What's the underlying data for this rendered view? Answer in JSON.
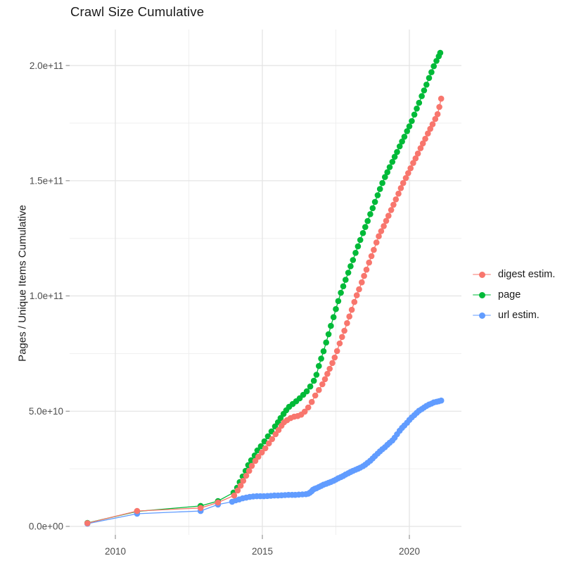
{
  "title": "Crawl Size Cumulative",
  "y_axis": {
    "label": "Pages / Unique Items Cumulative",
    "tick_labels": [
      "0.0e+00",
      "5.0e+10",
      "1.0e+11",
      "1.5e+11",
      "2.0e+11"
    ],
    "tick_values_e9": [
      0,
      50,
      100,
      150,
      200
    ],
    "minor_values_e9": [
      25,
      75,
      125,
      175
    ]
  },
  "x_axis": {
    "tick_labels": [
      "2010",
      "2015",
      "2020"
    ],
    "tick_values": [
      2010,
      2015,
      2020
    ],
    "minor_values": [
      2012.5,
      2017.5
    ]
  },
  "legend": {
    "items": [
      {
        "label": "digest estim.",
        "color": "#F8766D"
      },
      {
        "label": "page",
        "color": "#00BA38"
      },
      {
        "label": "url estim.",
        "color": "#619CFF"
      }
    ]
  },
  "colors": {
    "grid_major": "#e3e3e3",
    "grid_minor": "#efefef",
    "tick_mark": "#8c8c8c",
    "tick_label": "#4d4d4d"
  },
  "chart_data": {
    "type": "scatter",
    "title": "Crawl Size Cumulative",
    "xlabel": "",
    "ylabel": "Pages / Unique Items Cumulative",
    "x_unit": "year",
    "y_unit": "count (values in billions, 1e9)",
    "xlim": [
      2008.445,
      2021.77
    ],
    "ylim_e9": [
      -3.66,
      215.6
    ],
    "grid": true,
    "legend_position": "right",
    "series": [
      {
        "id": "page",
        "name": "page",
        "color": "#00BA38",
        "points": [
          [
            2009.05,
            1.5
          ],
          [
            2010.74,
            6.5
          ],
          [
            2012.9,
            8.9
          ],
          [
            2013.49,
            11
          ],
          [
            2014.02,
            14.7
          ],
          [
            2014.14,
            16.8
          ],
          [
            2014.23,
            19.2
          ],
          [
            2014.33,
            21.7
          ],
          [
            2014.43,
            24.1
          ],
          [
            2014.52,
            26.6
          ],
          [
            2014.62,
            28.7
          ],
          [
            2014.74,
            30.8
          ],
          [
            2014.83,
            33
          ],
          [
            2014.95,
            34.8
          ],
          [
            2015.07,
            36.9
          ],
          [
            2015.19,
            39.1
          ],
          [
            2015.31,
            41.2
          ],
          [
            2015.43,
            43.4
          ],
          [
            2015.53,
            45.2
          ],
          [
            2015.62,
            47
          ],
          [
            2015.72,
            48.8
          ],
          [
            2015.81,
            50.4
          ],
          [
            2015.91,
            51.9
          ],
          [
            2016.03,
            53.1
          ],
          [
            2016.15,
            54.3
          ],
          [
            2016.27,
            55.6
          ],
          [
            2016.39,
            57.1
          ],
          [
            2016.51,
            58.6
          ],
          [
            2016.63,
            60.7
          ],
          [
            2016.75,
            63.2
          ],
          [
            2016.84,
            65.8
          ],
          [
            2016.92,
            69.6
          ],
          [
            2017,
            72.8
          ],
          [
            2017.08,
            76
          ],
          [
            2017.17,
            79.8
          ],
          [
            2017.25,
            83.4
          ],
          [
            2017.33,
            87
          ],
          [
            2017.42,
            90.8
          ],
          [
            2017.5,
            94.3
          ],
          [
            2017.58,
            97.8
          ],
          [
            2017.67,
            101.4
          ],
          [
            2017.75,
            104.2
          ],
          [
            2017.83,
            107
          ],
          [
            2017.92,
            110.1
          ],
          [
            2018,
            112.9
          ],
          [
            2018.08,
            115.6
          ],
          [
            2018.17,
            118.7
          ],
          [
            2018.25,
            121.5
          ],
          [
            2018.33,
            124.3
          ],
          [
            2018.42,
            127.3
          ],
          [
            2018.5,
            129.9
          ],
          [
            2018.58,
            132.5
          ],
          [
            2018.67,
            135.5
          ],
          [
            2018.75,
            138.1
          ],
          [
            2018.83,
            140.8
          ],
          [
            2018.92,
            143.7
          ],
          [
            2019,
            146.4
          ],
          [
            2019.08,
            149
          ],
          [
            2019.17,
            151.6
          ],
          [
            2019.25,
            153.7
          ],
          [
            2019.33,
            155.9
          ],
          [
            2019.42,
            158.2
          ],
          [
            2019.5,
            160.4
          ],
          [
            2019.58,
            162.5
          ],
          [
            2019.67,
            164.9
          ],
          [
            2019.75,
            167
          ],
          [
            2019.83,
            169.1
          ],
          [
            2019.92,
            171.5
          ],
          [
            2020,
            173.6
          ],
          [
            2020.08,
            175.9
          ],
          [
            2020.17,
            178.7
          ],
          [
            2020.25,
            181.3
          ],
          [
            2020.33,
            183.8
          ],
          [
            2020.42,
            186.7
          ],
          [
            2020.5,
            189.2
          ],
          [
            2020.58,
            191.7
          ],
          [
            2020.67,
            194.6
          ],
          [
            2020.75,
            197.1
          ],
          [
            2020.83,
            199.7
          ],
          [
            2020.92,
            202
          ],
          [
            2021,
            204
          ],
          [
            2021.05,
            205.5
          ]
        ]
      },
      {
        "id": "url-estim",
        "name": "url estim.",
        "color": "#619CFF",
        "points": [
          [
            2009.05,
            1.2
          ],
          [
            2010.74,
            5.5
          ],
          [
            2012.9,
            6.7
          ],
          [
            2013.49,
            9.5
          ],
          [
            2013.97,
            10.7
          ],
          [
            2014.09,
            11.3
          ],
          [
            2014.21,
            11.7
          ],
          [
            2014.33,
            12.2
          ],
          [
            2014.45,
            12.5
          ],
          [
            2014.57,
            12.8
          ],
          [
            2014.69,
            13
          ],
          [
            2014.81,
            13.1
          ],
          [
            2014.93,
            13.1
          ],
          [
            2015.05,
            13.1
          ],
          [
            2015.17,
            13.2
          ],
          [
            2015.29,
            13.3
          ],
          [
            2015.41,
            13.4
          ],
          [
            2015.53,
            13.4
          ],
          [
            2015.65,
            13.5
          ],
          [
            2015.77,
            13.6
          ],
          [
            2015.89,
            13.7
          ],
          [
            2016.01,
            13.7
          ],
          [
            2016.12,
            13.7
          ],
          [
            2016.24,
            13.8
          ],
          [
            2016.36,
            13.9
          ],
          [
            2016.48,
            14
          ],
          [
            2016.56,
            14.2
          ],
          [
            2016.62,
            14.7
          ],
          [
            2016.68,
            15.3
          ],
          [
            2016.72,
            15.9
          ],
          [
            2016.78,
            16.3
          ],
          [
            2016.84,
            16.6
          ],
          [
            2016.92,
            17.1
          ],
          [
            2017,
            17.6
          ],
          [
            2017.08,
            18.1
          ],
          [
            2017.17,
            18.5
          ],
          [
            2017.25,
            18.9
          ],
          [
            2017.33,
            19.3
          ],
          [
            2017.42,
            19.8
          ],
          [
            2017.5,
            20.3
          ],
          [
            2017.58,
            20.9
          ],
          [
            2017.67,
            21.4
          ],
          [
            2017.75,
            21.9
          ],
          [
            2017.83,
            22.5
          ],
          [
            2017.92,
            23.1
          ],
          [
            2018,
            23.6
          ],
          [
            2018.08,
            24.1
          ],
          [
            2018.17,
            24.6
          ],
          [
            2018.25,
            25
          ],
          [
            2018.33,
            25.5
          ],
          [
            2018.42,
            26.1
          ],
          [
            2018.5,
            26.8
          ],
          [
            2018.58,
            27.6
          ],
          [
            2018.67,
            28.5
          ],
          [
            2018.75,
            29.5
          ],
          [
            2018.83,
            30.5
          ],
          [
            2018.92,
            31.6
          ],
          [
            2019,
            32.6
          ],
          [
            2019.08,
            33.5
          ],
          [
            2019.17,
            34.4
          ],
          [
            2019.25,
            35.4
          ],
          [
            2019.33,
            36.3
          ],
          [
            2019.42,
            37.3
          ],
          [
            2019.5,
            38.5
          ],
          [
            2019.58,
            40
          ],
          [
            2019.67,
            41.5
          ],
          [
            2019.75,
            42.8
          ],
          [
            2019.83,
            43.8
          ],
          [
            2019.92,
            45
          ],
          [
            2020,
            46.2
          ],
          [
            2020.08,
            47.3
          ],
          [
            2020.17,
            48.3
          ],
          [
            2020.25,
            49.3
          ],
          [
            2020.33,
            50.2
          ],
          [
            2020.42,
            50.9
          ],
          [
            2020.5,
            51.6
          ],
          [
            2020.58,
            52.3
          ],
          [
            2020.67,
            52.9
          ],
          [
            2020.75,
            53.3
          ],
          [
            2020.83,
            53.8
          ],
          [
            2020.92,
            54.1
          ],
          [
            2021,
            54.3
          ],
          [
            2021.08,
            54.6
          ]
        ]
      },
      {
        "id": "digest-estim",
        "name": "digest estim.",
        "color": "#F8766D",
        "points": [
          [
            2009.05,
            1.4
          ],
          [
            2010.74,
            6.7
          ],
          [
            2012.9,
            8
          ],
          [
            2013.49,
            10.4
          ],
          [
            2014.04,
            13.4
          ],
          [
            2014.16,
            15.6
          ],
          [
            2014.26,
            17.7
          ],
          [
            2014.35,
            19.8
          ],
          [
            2014.45,
            22
          ],
          [
            2014.55,
            24.1
          ],
          [
            2014.64,
            26.3
          ],
          [
            2014.76,
            28.4
          ],
          [
            2014.86,
            30.2
          ],
          [
            2014.98,
            32.1
          ],
          [
            2015.1,
            33.9
          ],
          [
            2015.22,
            36
          ],
          [
            2015.33,
            37.9
          ],
          [
            2015.45,
            40
          ],
          [
            2015.55,
            41.8
          ],
          [
            2015.65,
            43.7
          ],
          [
            2015.74,
            45.2
          ],
          [
            2015.84,
            46.1
          ],
          [
            2015.96,
            47
          ],
          [
            2016.08,
            47.6
          ],
          [
            2016.2,
            47.9
          ],
          [
            2016.32,
            48.5
          ],
          [
            2016.44,
            49.8
          ],
          [
            2016.56,
            51.6
          ],
          [
            2016.68,
            54
          ],
          [
            2016.8,
            56.8
          ],
          [
            2016.92,
            59.2
          ],
          [
            2017.04,
            61.7
          ],
          [
            2017.13,
            63.9
          ],
          [
            2017.21,
            66.2
          ],
          [
            2017.29,
            68.4
          ],
          [
            2017.38,
            70.9
          ],
          [
            2017.46,
            73.3
          ],
          [
            2017.54,
            76.1
          ],
          [
            2017.63,
            79.4
          ],
          [
            2017.71,
            82.2
          ],
          [
            2017.79,
            84.9
          ],
          [
            2017.88,
            88.2
          ],
          [
            2017.96,
            91.1
          ],
          [
            2018.04,
            94
          ],
          [
            2018.13,
            97.4
          ],
          [
            2018.21,
            100.3
          ],
          [
            2018.29,
            102.9
          ],
          [
            2018.38,
            105.9
          ],
          [
            2018.46,
            108.7
          ],
          [
            2018.54,
            111.4
          ],
          [
            2018.63,
            114.5
          ],
          [
            2018.71,
            117.3
          ],
          [
            2018.79,
            120
          ],
          [
            2018.88,
            123.2
          ],
          [
            2018.96,
            125.9
          ],
          [
            2019.04,
            128.1
          ],
          [
            2019.13,
            130.3
          ],
          [
            2019.21,
            132.6
          ],
          [
            2019.29,
            134.8
          ],
          [
            2019.38,
            137.3
          ],
          [
            2019.46,
            139.6
          ],
          [
            2019.54,
            141.9
          ],
          [
            2019.63,
            144.4
          ],
          [
            2019.71,
            146.8
          ],
          [
            2019.79,
            149
          ],
          [
            2019.88,
            151.2
          ],
          [
            2019.96,
            153.3
          ],
          [
            2020.04,
            155.4
          ],
          [
            2020.13,
            157.7
          ],
          [
            2020.21,
            159.7
          ],
          [
            2020.29,
            161.8
          ],
          [
            2020.38,
            164.1
          ],
          [
            2020.46,
            166.2
          ],
          [
            2020.54,
            168.2
          ],
          [
            2020.63,
            170.5
          ],
          [
            2020.71,
            172.5
          ],
          [
            2020.79,
            174.5
          ],
          [
            2020.88,
            176.8
          ],
          [
            2020.96,
            178.9
          ],
          [
            2021.02,
            182
          ],
          [
            2021.08,
            185.6
          ]
        ]
      }
    ]
  }
}
